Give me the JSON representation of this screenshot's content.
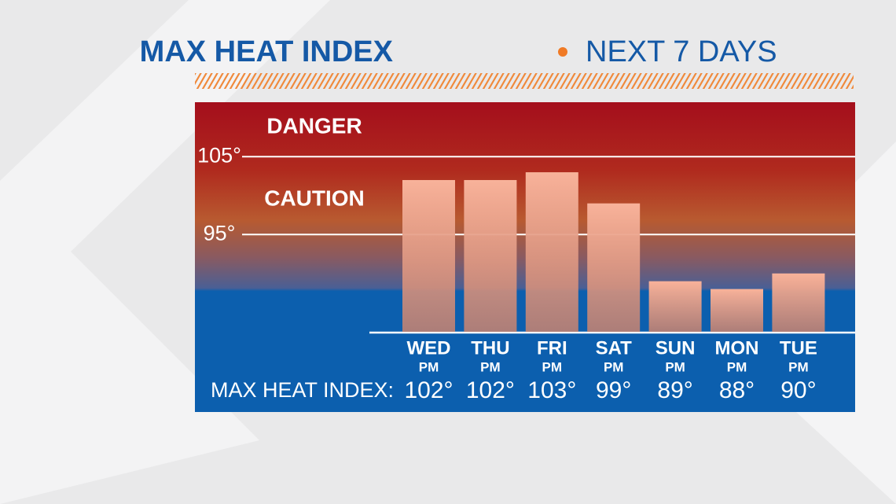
{
  "chart_data": {
    "type": "bar",
    "title": "MAX HEAT INDEX",
    "subtitle": "NEXT 7 DAYS",
    "zones": [
      {
        "label": "DANGER"
      },
      {
        "label": "CAUTION"
      }
    ],
    "categories": [
      "WED",
      "THU",
      "FRI",
      "SAT",
      "SUN",
      "MON",
      "TUE"
    ],
    "subcategories": [
      "PM",
      "PM",
      "PM",
      "PM",
      "PM",
      "PM",
      "PM"
    ],
    "row_label": "MAX HEAT INDEX:",
    "values": [
      102,
      102,
      103,
      99,
      89,
      88,
      90
    ],
    "value_labels": [
      "102°",
      "102°",
      "103°",
      "99°",
      "89°",
      "88°",
      "90°"
    ],
    "ylim": [
      82.5,
      112
    ],
    "yticks": [
      {
        "value": 95,
        "label": "95°"
      },
      {
        "value": 105,
        "label": "105°"
      }
    ],
    "grid": true
  }
}
